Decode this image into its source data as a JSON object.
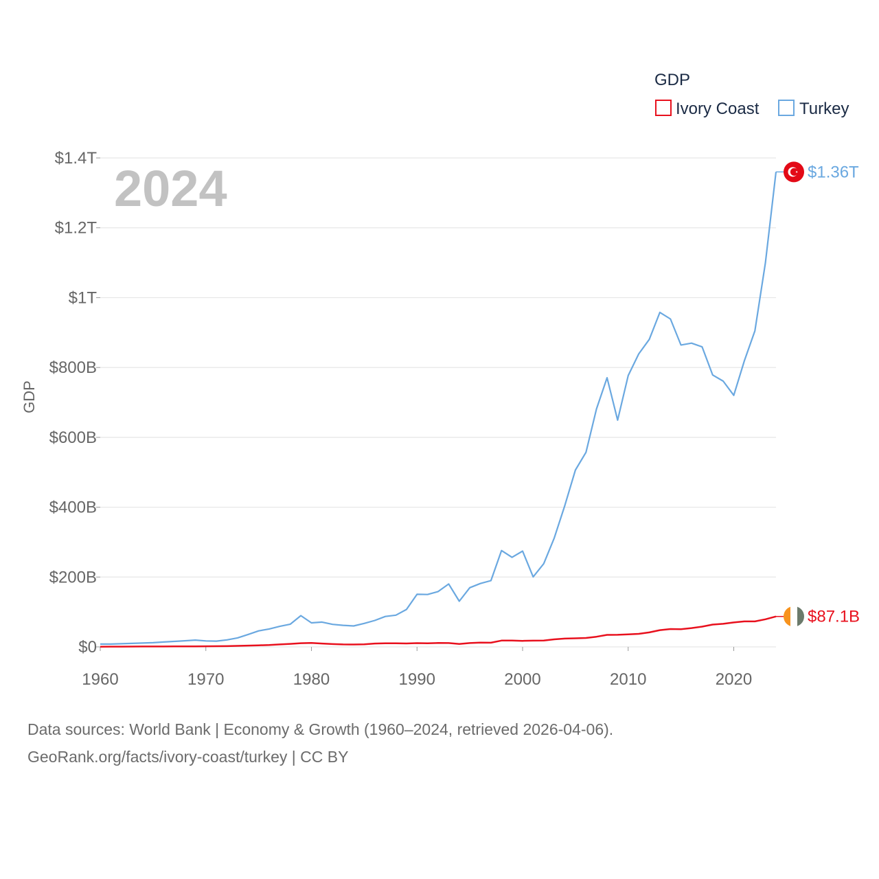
{
  "chart_data": {
    "type": "line",
    "title": "GDP",
    "year_label": "2024",
    "ylabel": "GDP",
    "xlabel": "",
    "xlim": [
      1960,
      2024
    ],
    "ylim": [
      0,
      1400
    ],
    "value_unit": "billion USD",
    "x_ticks": [
      1960,
      1970,
      1980,
      1990,
      2000,
      2010,
      2020
    ],
    "x_tick_labels": [
      "1960",
      "1970",
      "1980",
      "1990",
      "2000",
      "2010",
      "2020"
    ],
    "y_ticks": [
      0,
      200,
      400,
      600,
      800,
      1000,
      1200,
      1400
    ],
    "y_tick_labels": [
      "$0",
      "$200B",
      "$400B",
      "$600B",
      "$800B",
      "$1T",
      "$1.2T",
      "$1.4T"
    ],
    "legend": {
      "title": "GDP",
      "position": "top-right"
    },
    "grid": true,
    "x": [
      1960,
      1961,
      1962,
      1963,
      1964,
      1965,
      1966,
      1967,
      1968,
      1969,
      1970,
      1971,
      1972,
      1973,
      1974,
      1975,
      1976,
      1977,
      1978,
      1979,
      1980,
      1981,
      1982,
      1983,
      1984,
      1985,
      1986,
      1987,
      1988,
      1989,
      1990,
      1991,
      1992,
      1993,
      1994,
      1995,
      1996,
      1997,
      1998,
      1999,
      2000,
      2001,
      2002,
      2003,
      2004,
      2005,
      2006,
      2007,
      2008,
      2009,
      2010,
      2011,
      2012,
      2013,
      2014,
      2015,
      2016,
      2017,
      2018,
      2019,
      2020,
      2021,
      2022,
      2023,
      2024
    ],
    "series": [
      {
        "name": "Ivory Coast",
        "color": "#e8101d",
        "end_label": "$87.1B",
        "flag": "ivory-coast-flag",
        "values": [
          0.6,
          0.7,
          0.8,
          0.9,
          1.1,
          1.1,
          1.2,
          1.3,
          1.5,
          1.6,
          1.8,
          1.9,
          2.2,
          3.0,
          3.7,
          4.5,
          5.3,
          7.0,
          8.7,
          10.7,
          11.4,
          9.6,
          8.1,
          7.1,
          6.8,
          7.3,
          9.6,
          10.2,
          10.4,
          9.9,
          10.8,
          10.5,
          11.2,
          11.0,
          8.3,
          11.1,
          12.1,
          12.0,
          18.0,
          18.0,
          17.4,
          17.8,
          18.0,
          21.6,
          23.7,
          24.5,
          25.6,
          29.1,
          34.4,
          34.6,
          35.8,
          37.4,
          41.5,
          47.9,
          51.1,
          50.5,
          53.9,
          58.1,
          64.0,
          66.0,
          70.0,
          73.0,
          73.0,
          79.0,
          87.1
        ]
      },
      {
        "name": "Turkey",
        "color": "#6aa8e0",
        "end_label": "$1.36T",
        "flag": "turkey-flag",
        "values": [
          8.0,
          8.0,
          9.0,
          10.0,
          11.0,
          12.0,
          14.0,
          15.8,
          17.5,
          19.5,
          17.1,
          16.5,
          20.0,
          25.7,
          35.6,
          45.8,
          51.3,
          58.7,
          65.1,
          89.4,
          68.8,
          71.0,
          64.5,
          61.7,
          59.9,
          67.2,
          75.7,
          87.2,
          90.9,
          107.1,
          150.7,
          150.0,
          158.5,
          180.2,
          130.7,
          169.5,
          181.5,
          189.8,
          275.9,
          256.4,
          274.3,
          200.3,
          238.4,
          311.8,
          404.8,
          506.3,
          557.1,
          681.3,
          770.5,
          649.3,
          776.9,
          838.8,
          880.6,
          957.8,
          938.9,
          864.3,
          869.7,
          859.0,
          778.5,
          761.0,
          720.3,
          819.0,
          905.0,
          1100.0,
          1360.0
        ]
      }
    ]
  },
  "footer": {
    "line1": "Data sources: World Bank | Economy & Growth (1960–2024, retrieved 2026-04-06).",
    "line2": "GeoRank.org/facts/ivory-coast/turkey | CC BY"
  }
}
